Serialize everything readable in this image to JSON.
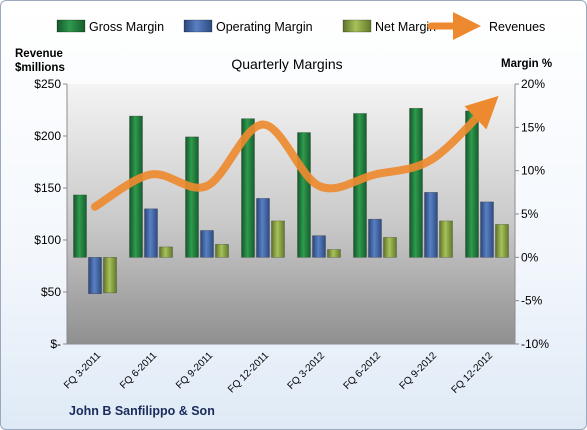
{
  "chart_data": {
    "type": "bar",
    "title": "Quarterly Margins",
    "company": "John B Sanfilippo & Son",
    "left_axis_title": [
      "Revenue",
      "$millions"
    ],
    "right_axis_title": "Margin %",
    "categories": [
      "FQ 3-2011",
      "FQ 6-2011",
      "FQ 9-2011",
      "FQ 12-2011",
      "FQ 3-2012",
      "FQ 6-2012",
      "FQ 9-2012",
      "FQ 12-2012"
    ],
    "left_ticks": [
      "$-",
      "$50",
      "$100",
      "$150",
      "$200",
      "$250"
    ],
    "right_ticks": [
      "-10%",
      "-5%",
      "0%",
      "5%",
      "10%",
      "15%",
      "20%"
    ],
    "ylim_left": [
      0,
      250
    ],
    "ylim_right": [
      -10,
      20
    ],
    "series": [
      {
        "name": "Gross Margin",
        "type": "bar",
        "axis": "right",
        "color": "#1e7a3c",
        "values": [
          7.2,
          16.3,
          13.9,
          16.0,
          14.4,
          16.6,
          17.2,
          16.9
        ]
      },
      {
        "name": "Operating Margin",
        "type": "bar",
        "axis": "right",
        "color": "#3a5fa0",
        "values": [
          -4.2,
          5.6,
          3.1,
          6.8,
          2.5,
          4.4,
          7.5,
          6.4
        ]
      },
      {
        "name": "Net Margin",
        "type": "bar",
        "axis": "right",
        "color": "#7f9a3c",
        "values": [
          -4.1,
          1.2,
          1.5,
          4.2,
          0.9,
          2.3,
          4.2,
          3.8
        ]
      },
      {
        "name": "Revenues",
        "type": "line",
        "axis": "left",
        "color": "#ed8a2f",
        "values": [
          132,
          163,
          152,
          211,
          152,
          163,
          177,
          228
        ]
      }
    ],
    "grid": false,
    "legend_position": "top"
  }
}
